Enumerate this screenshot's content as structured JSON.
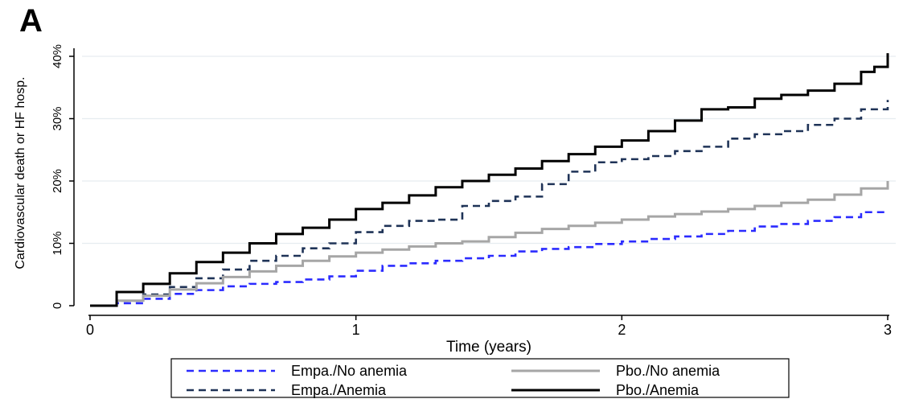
{
  "panel_letter": "A",
  "chart_data": {
    "type": "line",
    "title": "",
    "xlabel": "Time (years)",
    "ylabel": "Cardiovascular death or HF hosp.",
    "xlim": [
      0,
      3
    ],
    "ylim": [
      0,
      0.4
    ],
    "xticks": [
      0,
      1,
      2,
      3
    ],
    "xtick_labels": [
      "0",
      "1",
      "2",
      "3"
    ],
    "yticks": [
      0,
      0.1,
      0.2,
      0.3,
      0.4
    ],
    "ytick_labels": [
      "0",
      "10%",
      "20%",
      "30%",
      "40%"
    ],
    "grid": "horizontal",
    "legend_position": "bottom",
    "series": [
      {
        "name": "Empa./No anemia",
        "color": "#2b2bff",
        "style": "dashed",
        "x": [
          0,
          0.1,
          0.2,
          0.3,
          0.4,
          0.5,
          0.6,
          0.7,
          0.8,
          0.9,
          1.0,
          1.1,
          1.2,
          1.3,
          1.4,
          1.5,
          1.6,
          1.7,
          1.8,
          1.9,
          2.0,
          2.1,
          2.2,
          2.3,
          2.4,
          2.5,
          2.6,
          2.7,
          2.8,
          2.9,
          3.0
        ],
        "y": [
          0,
          0.004,
          0.011,
          0.019,
          0.025,
          0.031,
          0.035,
          0.038,
          0.042,
          0.047,
          0.056,
          0.064,
          0.068,
          0.072,
          0.076,
          0.08,
          0.087,
          0.091,
          0.094,
          0.099,
          0.103,
          0.107,
          0.111,
          0.115,
          0.12,
          0.127,
          0.131,
          0.136,
          0.142,
          0.15,
          0.152
        ]
      },
      {
        "name": "Empa./Anemia",
        "color": "#1f3357",
        "style": "dashed",
        "x": [
          0,
          0.1,
          0.2,
          0.3,
          0.4,
          0.5,
          0.6,
          0.7,
          0.8,
          0.9,
          1.0,
          1.1,
          1.2,
          1.3,
          1.4,
          1.5,
          1.6,
          1.7,
          1.8,
          1.9,
          2.0,
          2.1,
          2.2,
          2.3,
          2.4,
          2.5,
          2.6,
          2.7,
          2.8,
          2.9,
          3.0
        ],
        "y": [
          0,
          0.008,
          0.018,
          0.03,
          0.044,
          0.058,
          0.072,
          0.08,
          0.092,
          0.1,
          0.118,
          0.128,
          0.136,
          0.138,
          0.16,
          0.168,
          0.175,
          0.195,
          0.215,
          0.23,
          0.235,
          0.24,
          0.248,
          0.255,
          0.268,
          0.275,
          0.28,
          0.29,
          0.3,
          0.315,
          0.33
        ]
      },
      {
        "name": "Pbo./No anemia",
        "color": "#a6a6a6",
        "style": "solid",
        "x": [
          0,
          0.1,
          0.2,
          0.3,
          0.4,
          0.5,
          0.6,
          0.7,
          0.8,
          0.9,
          1.0,
          1.1,
          1.2,
          1.3,
          1.4,
          1.5,
          1.6,
          1.7,
          1.8,
          1.9,
          2.0,
          2.1,
          2.2,
          2.3,
          2.4,
          2.5,
          2.6,
          2.7,
          2.8,
          2.9,
          3.0
        ],
        "y": [
          0,
          0.008,
          0.016,
          0.026,
          0.036,
          0.046,
          0.055,
          0.064,
          0.072,
          0.079,
          0.085,
          0.09,
          0.095,
          0.1,
          0.103,
          0.11,
          0.117,
          0.123,
          0.128,
          0.133,
          0.138,
          0.143,
          0.147,
          0.151,
          0.155,
          0.16,
          0.165,
          0.17,
          0.178,
          0.188,
          0.2
        ]
      },
      {
        "name": "Pbo./Anemia",
        "color": "#000000",
        "style": "solid",
        "x": [
          0,
          0.1,
          0.2,
          0.3,
          0.4,
          0.5,
          0.6,
          0.7,
          0.8,
          0.9,
          1.0,
          1.1,
          1.2,
          1.3,
          1.4,
          1.5,
          1.6,
          1.7,
          1.8,
          1.9,
          2.0,
          2.1,
          2.2,
          2.3,
          2.4,
          2.5,
          2.6,
          2.7,
          2.8,
          2.9,
          2.95,
          3.0
        ],
        "y": [
          0,
          0.022,
          0.035,
          0.052,
          0.07,
          0.085,
          0.1,
          0.115,
          0.125,
          0.138,
          0.155,
          0.165,
          0.177,
          0.19,
          0.2,
          0.21,
          0.22,
          0.232,
          0.243,
          0.255,
          0.265,
          0.28,
          0.297,
          0.315,
          0.318,
          0.332,
          0.338,
          0.345,
          0.356,
          0.375,
          0.383,
          0.405
        ]
      }
    ]
  }
}
